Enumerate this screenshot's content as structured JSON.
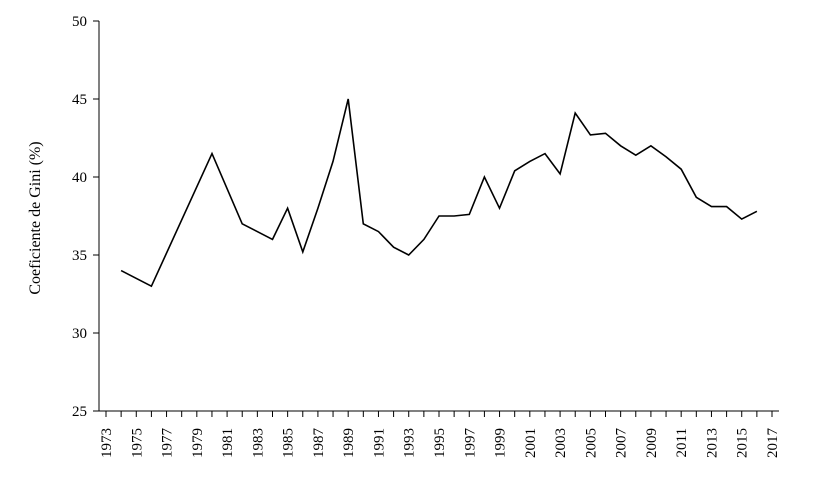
{
  "chart_data": {
    "type": "line",
    "title": "",
    "xlabel": "",
    "ylabel": "Coeficiente de Gini (%)",
    "ylim": [
      25,
      50
    ],
    "yticks": [
      25,
      30,
      35,
      40,
      45,
      50
    ],
    "xlim": [
      1973,
      2017
    ],
    "xticks": [
      1973,
      1975,
      1977,
      1979,
      1981,
      1983,
      1985,
      1987,
      1989,
      1991,
      1993,
      1995,
      1997,
      1999,
      2001,
      2003,
      2005,
      2007,
      2009,
      2011,
      2013,
      2015,
      2017
    ],
    "grid": false,
    "legend": "none",
    "line_color": "#000000",
    "series": [
      {
        "x": [
          1974,
          1976,
          1980,
          1982,
          1984,
          1985,
          1986,
          1987,
          1988,
          1989,
          1990,
          1991,
          1992,
          1993,
          1994,
          1995,
          1996,
          1997,
          1998,
          1999,
          2000,
          2001,
          2002,
          2003,
          2004,
          2005,
          2006,
          2007,
          2008,
          2009,
          2010,
          2011,
          2012,
          2013,
          2014,
          2015,
          2016
        ],
        "values": [
          34.0,
          33.0,
          41.5,
          37.0,
          36.0,
          38.0,
          35.2,
          38.0,
          41.0,
          45.0,
          37.0,
          36.5,
          35.5,
          35.0,
          36.0,
          37.5,
          37.5,
          37.6,
          40.0,
          38.0,
          40.4,
          41.0,
          41.5,
          40.2,
          44.1,
          42.7,
          42.8,
          42.0,
          41.4,
          42.0,
          41.3,
          40.5,
          38.7,
          38.1,
          38.1,
          37.3,
          37.8
        ]
      }
    ]
  }
}
